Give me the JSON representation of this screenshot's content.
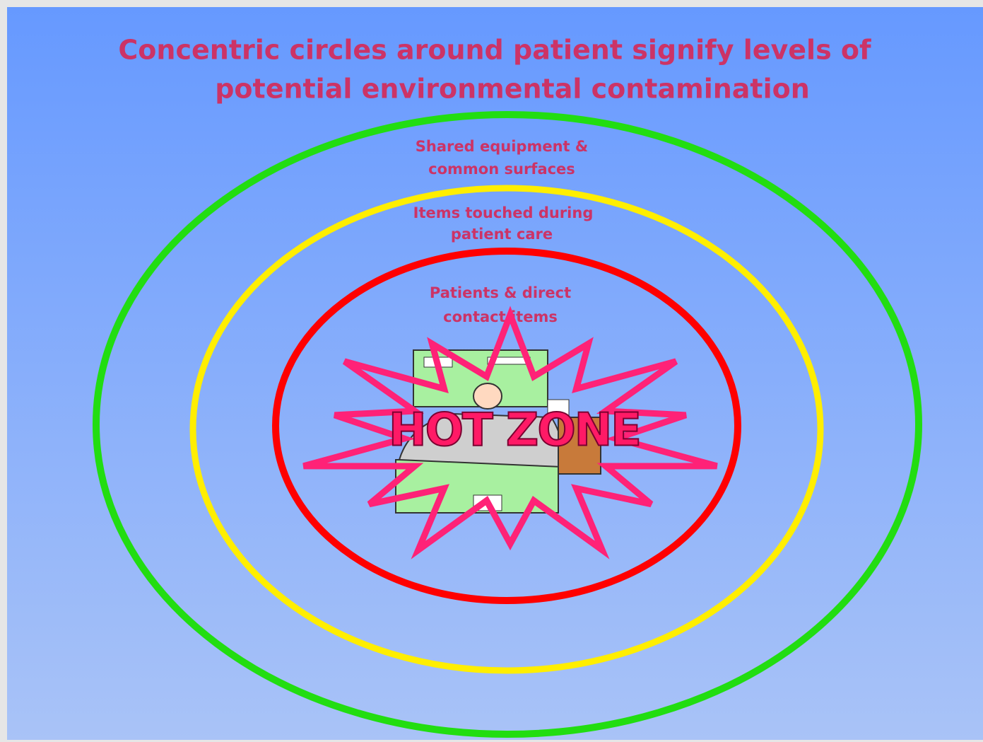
{
  "title": {
    "lines": [
      "Concentric circles around patient signify levels of",
      "potential environmental contamination"
    ]
  },
  "zones": [
    {
      "label": [
        "Shared equipment &",
        "common surfaces"
      ]
    },
    {
      "label": [
        "Items touched during",
        "patient care"
      ]
    },
    {
      "label": [
        "Patients & direct",
        "contact items"
      ]
    }
  ],
  "center": {
    "label": "HOT ZONE"
  }
}
